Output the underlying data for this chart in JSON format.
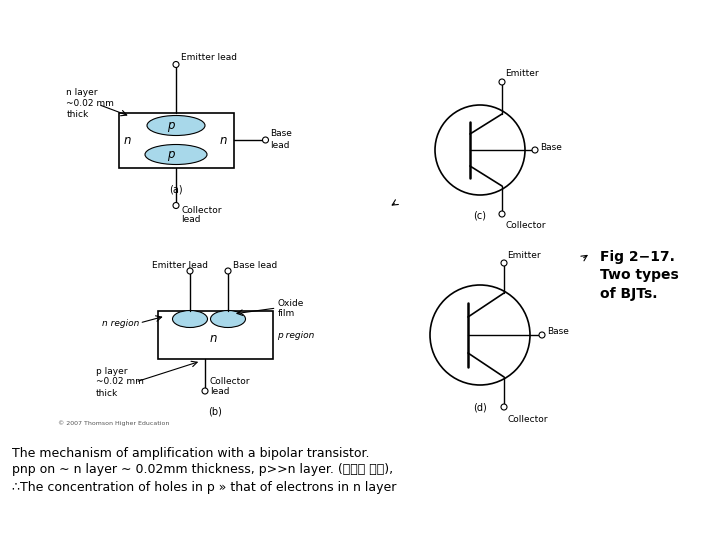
{
  "bg_color": "#ffffff",
  "fig_width": 7.2,
  "fig_height": 5.4,
  "dpi": 100,
  "caption_line1": "The mechanism of amplification with a bipolar transistor.",
  "caption_line2": "pnp on ∼ n layer ∼ 0.02mm thickness, p>>n layer. (수백배 이상),",
  "caption_line3": "∴The concentration of holes in p » that of electrons in n layer",
  "fig_label": "Fig 2−17.\nTwo types\nof BJTs.",
  "copyright_text": "© 2007 Thomson Higher Education",
  "pnp_color": "#a8d8ea",
  "box_color": "#000000",
  "label_fontsize": 6.5,
  "caption_fontsize": 9,
  "fig_label_fontsize": 10
}
